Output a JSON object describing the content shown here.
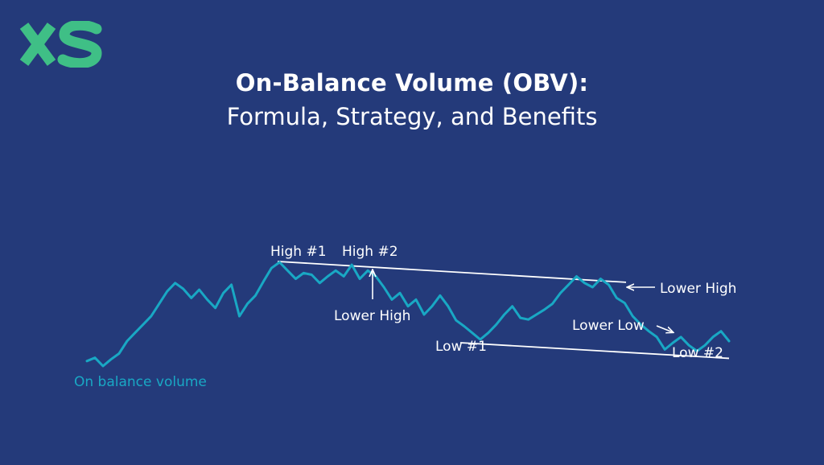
{
  "brand": {
    "logo_text": "XS",
    "logo_color": "#3fbf86"
  },
  "title": {
    "line1": "On-Balance Volume (OBV):",
    "line2": "Formula, Strategy, and Benefits"
  },
  "colors": {
    "background": "#243a7a",
    "line": "#19a8c4",
    "annotation": "#ffffff"
  },
  "chart_data": {
    "type": "line",
    "title": "",
    "xlabel": "",
    "ylabel": "",
    "grid": false,
    "series": [
      {
        "name": "On balance volume",
        "x": [
          0,
          1,
          2,
          3,
          4,
          5,
          6,
          7,
          8,
          9,
          10,
          11,
          12,
          13,
          14,
          15,
          16,
          17,
          18,
          19,
          20,
          21,
          22,
          23,
          24,
          25,
          26,
          27,
          28,
          29,
          30,
          31,
          32,
          33,
          34,
          35,
          36,
          37,
          38,
          39,
          40,
          41,
          42,
          43,
          44,
          45,
          46,
          47,
          48,
          49,
          50,
          51,
          52,
          53,
          54,
          55,
          56,
          57,
          58,
          59,
          60,
          61,
          62,
          63,
          64,
          65,
          66,
          67,
          68,
          69,
          70,
          71,
          72,
          73,
          74,
          75,
          76,
          77,
          78,
          79,
          80
        ],
        "values": [
          0.06,
          0.1,
          0.0,
          0.08,
          0.15,
          0.3,
          0.4,
          0.5,
          0.6,
          0.75,
          0.9,
          1.0,
          0.93,
          0.82,
          0.92,
          0.8,
          0.7,
          0.88,
          0.98,
          0.6,
          0.75,
          0.85,
          1.02,
          1.18,
          1.25,
          1.15,
          1.05,
          1.12,
          1.1,
          1.0,
          1.08,
          1.15,
          1.08,
          1.22,
          1.05,
          1.15,
          1.08,
          0.95,
          0.8,
          0.88,
          0.72,
          0.8,
          0.62,
          0.72,
          0.85,
          0.72,
          0.55,
          0.48,
          0.4,
          0.32,
          0.4,
          0.5,
          0.62,
          0.72,
          0.58,
          0.56,
          0.62,
          0.68,
          0.75,
          0.88,
          0.98,
          1.08,
          1.0,
          0.95,
          1.05,
          0.98,
          0.82,
          0.76,
          0.6,
          0.5,
          0.42,
          0.35,
          0.2,
          0.28,
          0.35,
          0.25,
          0.18,
          0.25,
          0.35,
          0.42,
          0.3
        ]
      }
    ],
    "legend": "On balance volume",
    "annotations": [
      {
        "label": "High #1",
        "x": 24
      },
      {
        "label": "High #2",
        "x": 33
      },
      {
        "label": "Lower High",
        "x": 33
      },
      {
        "label": "Lower High",
        "x": 61
      },
      {
        "label": "Low #1",
        "x": 49
      },
      {
        "label": "Lower Low",
        "x": 72
      },
      {
        "label": "Low #2",
        "x": 76
      }
    ],
    "trendlines": [
      {
        "name": "resistance",
        "from_x": 21,
        "from_y": 1.25,
        "to_x": 64,
        "to_y": 0.98
      },
      {
        "name": "support",
        "from_x": 42,
        "from_y": 0.32,
        "to_x": 80,
        "to_y": 0.17
      }
    ]
  }
}
